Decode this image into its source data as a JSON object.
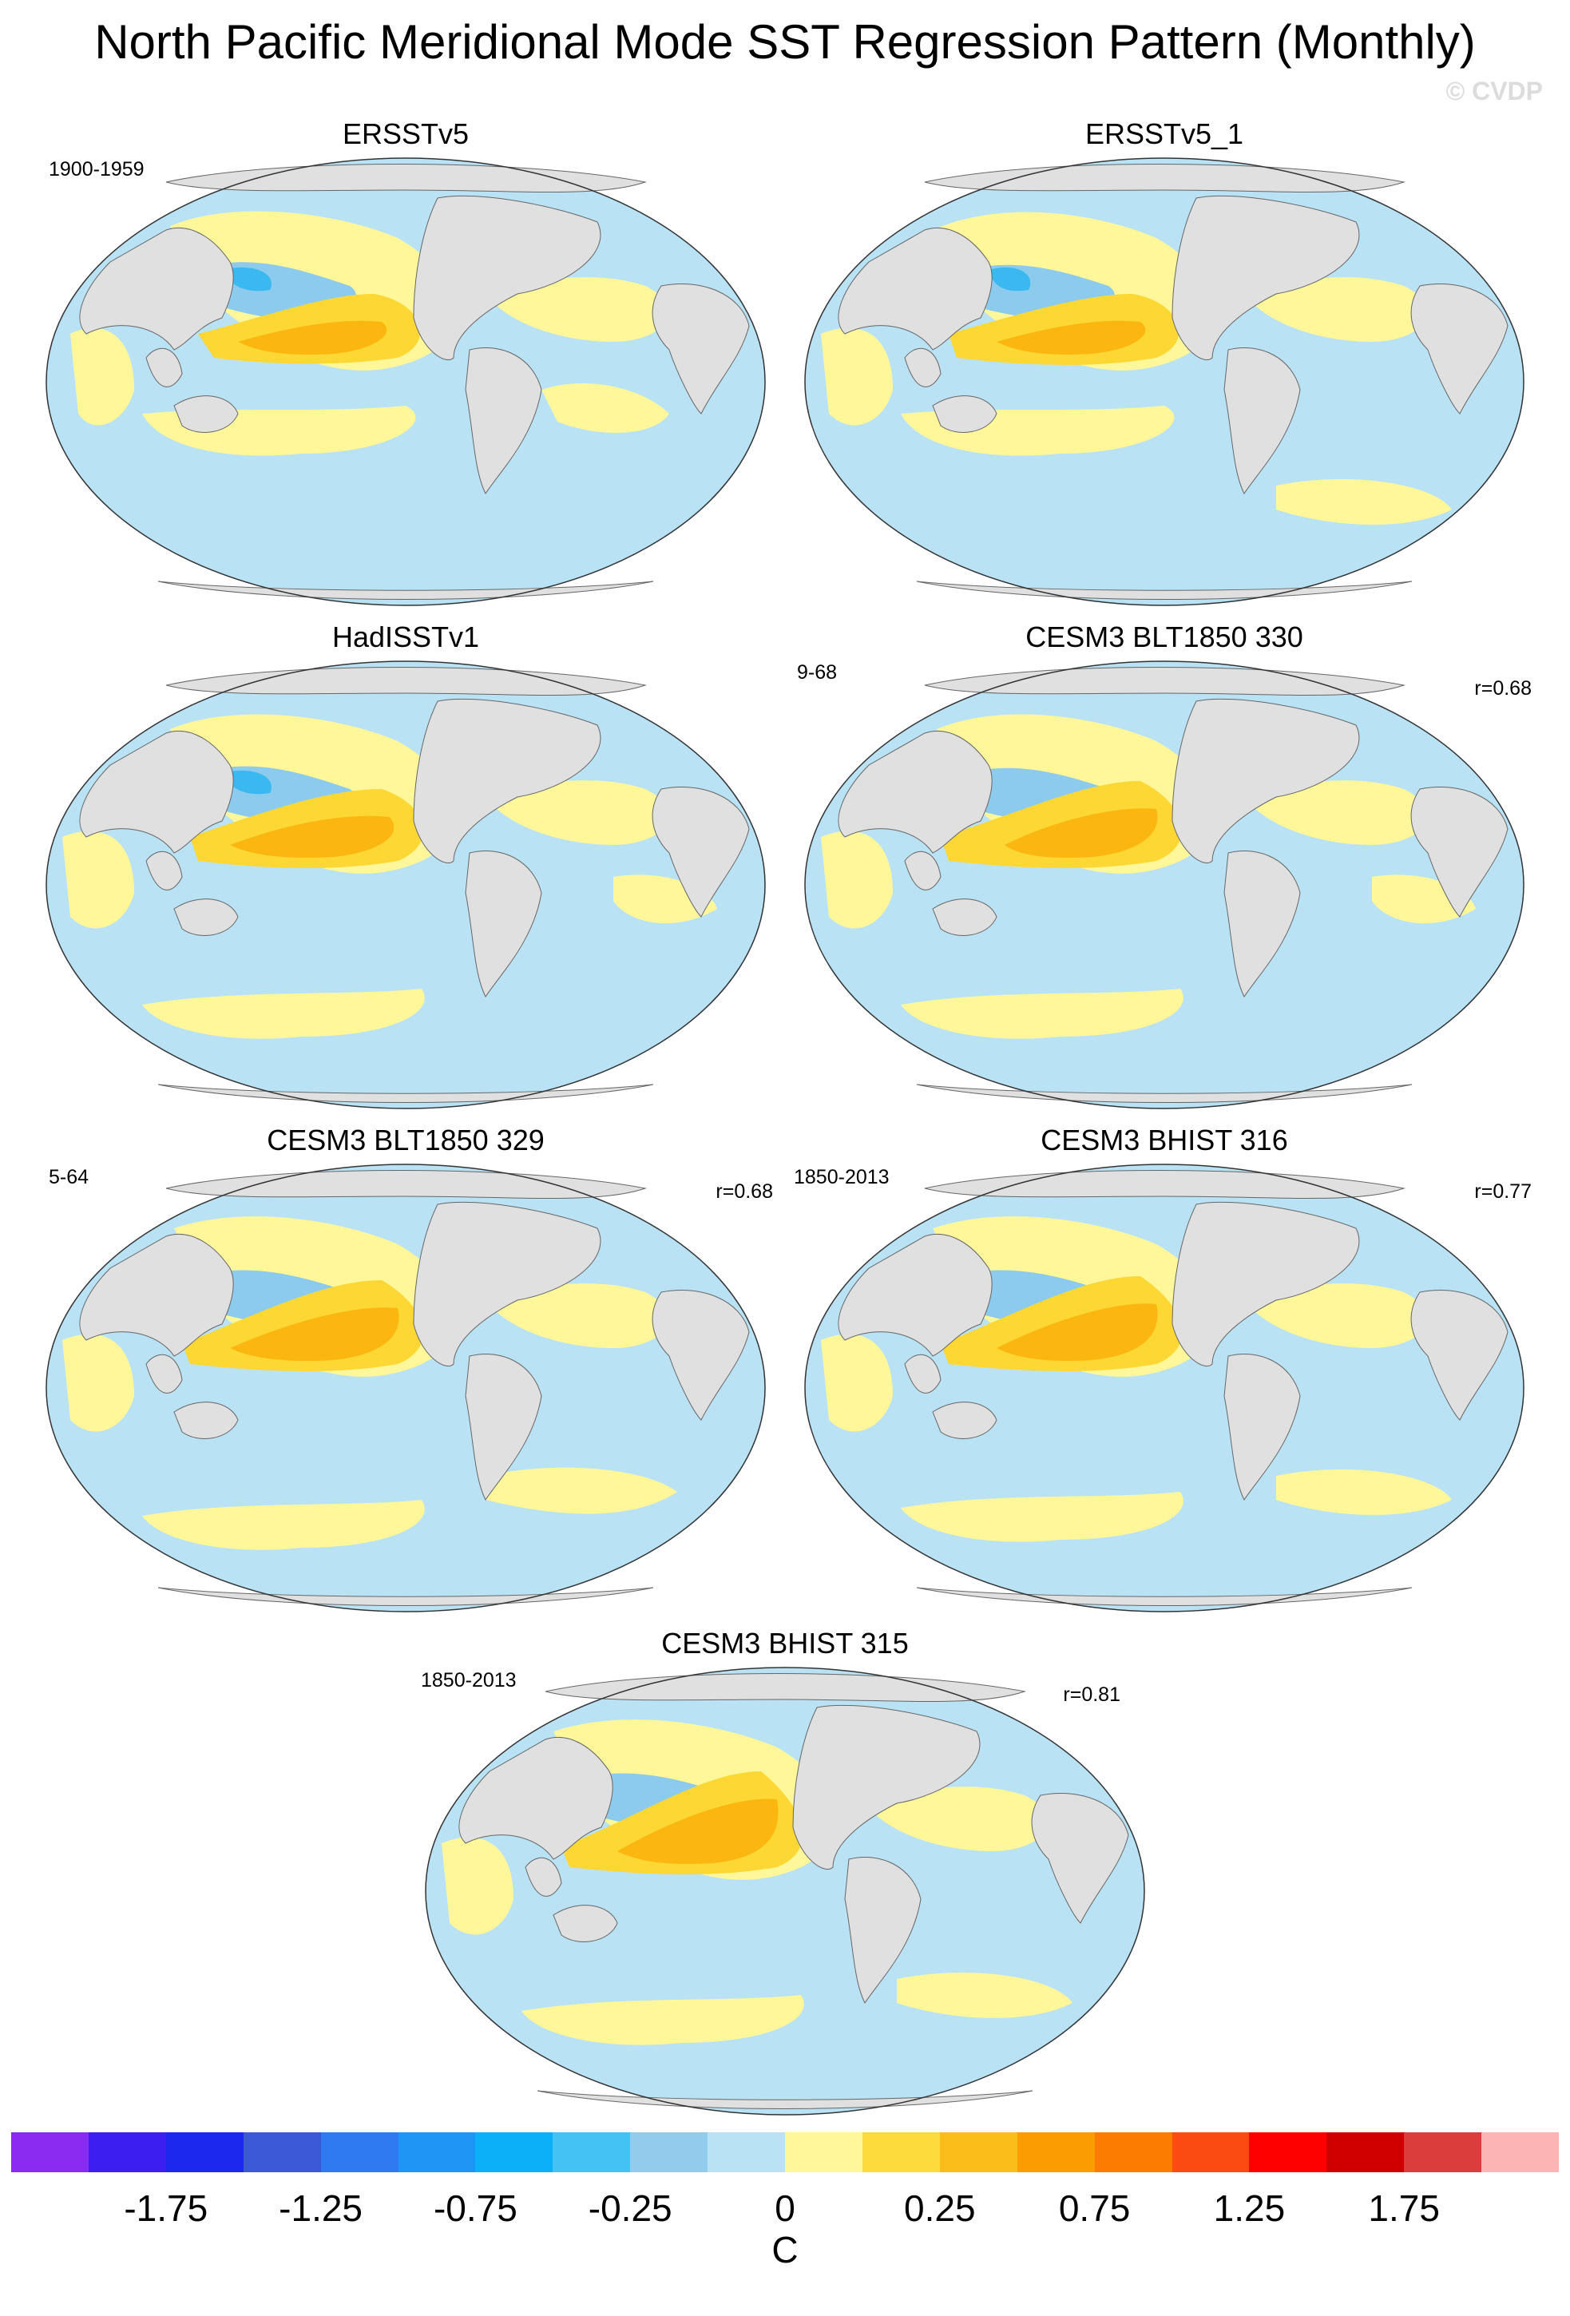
{
  "title": "North Pacific Meridional Mode SST Regression Pattern (Monthly)",
  "copyright": "© CVDP",
  "colors": {
    "land": "#e0e0e0",
    "neg_light": "#b9e2f5",
    "neg_medium": "#8ccbee",
    "neg_strong": "#3ab8f0",
    "pos_light": "#fff79a",
    "pos_medium": "#fdd734",
    "pos_strong": "#fbb60f"
  },
  "panels": [
    {
      "title": "ERSSTv5",
      "period": "1900-1959",
      "corr": ""
    },
    {
      "title": "ERSSTv5_1",
      "period": "",
      "corr": ""
    },
    {
      "title": "HadISSTv1",
      "period": "",
      "corr": ""
    },
    {
      "title": "CESM3 BLT1850 330",
      "period": "9-68",
      "corr": "r=0.68"
    },
    {
      "title": "CESM3 BLT1850 329",
      "period": "5-64",
      "corr": "r=0.68"
    },
    {
      "title": "CESM3 BHIST 316",
      "period": "1850-2013",
      "corr": "r=0.77"
    },
    {
      "title": "CESM3 BHIST 315",
      "period": "1850-2013",
      "corr": "r=0.81"
    }
  ],
  "colorbar": {
    "colors": [
      "#8a2bf2",
      "#3c1ef0",
      "#1d28ee",
      "#3d5ad6",
      "#2f7af0",
      "#1e96f6",
      "#0bb0f8",
      "#44c2f3",
      "#92ccec",
      "#b9e2f5",
      "#fff79a",
      "#fddb3a",
      "#fbbd1a",
      "#fb9d02",
      "#fb7c00",
      "#fb4a12",
      "#fe0000",
      "#d10000",
      "#db3d3d",
      "#fdb4b4"
    ],
    "labels": [
      "-1.75",
      "-1.25",
      "-0.75",
      "-0.25",
      "0",
      "0.25",
      "0.75",
      "1.25",
      "1.75"
    ],
    "units": "C"
  }
}
